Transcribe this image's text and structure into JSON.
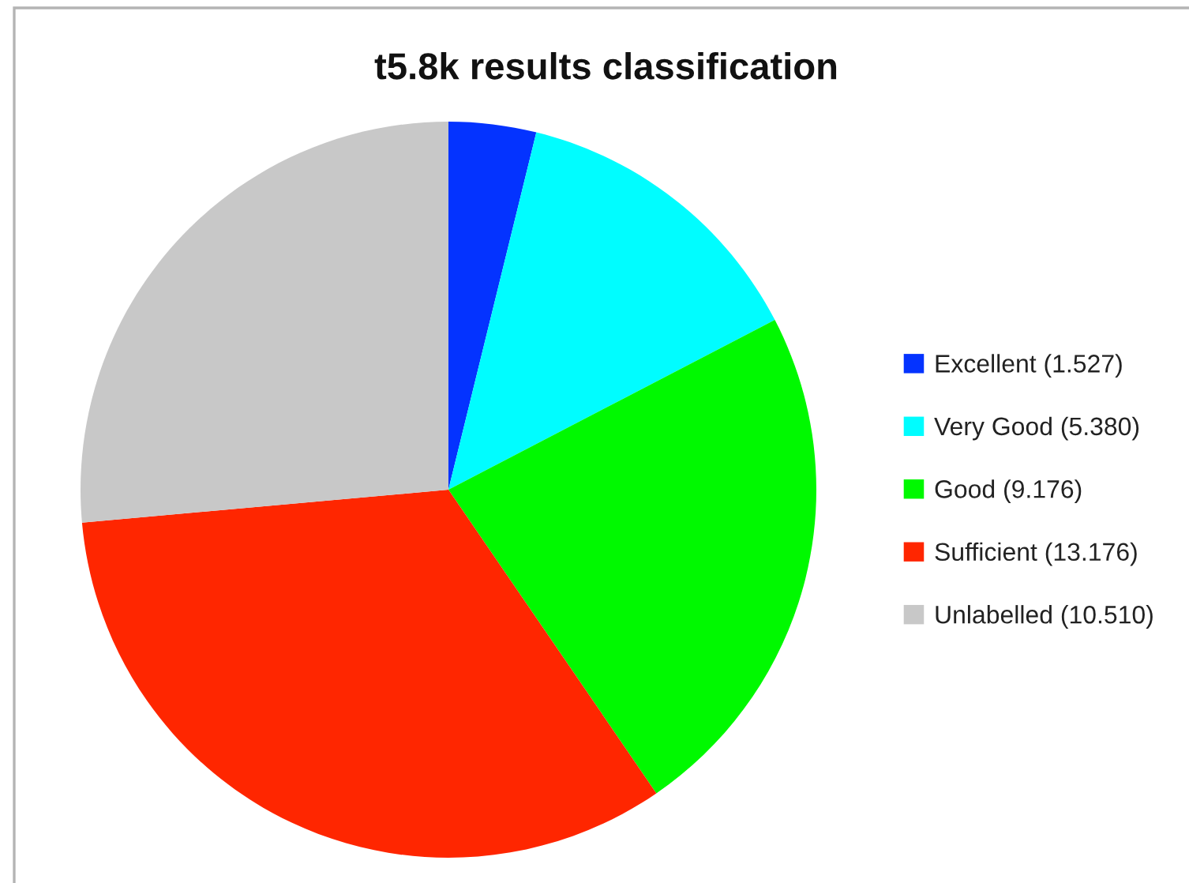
{
  "chart_data": {
    "type": "pie",
    "title": "t5.8k results classification",
    "categories": [
      "Excellent (1.527)",
      "Very Good (5.380)",
      "Good (9.176)",
      "Sufficient (13.176)",
      "Unlabelled (10.510)"
    ],
    "values": [
      1.527,
      5.38,
      9.176,
      13.176,
      10.51
    ],
    "colors": [
      "#0433ff",
      "#00fdff",
      "#00f900",
      "#ff2600",
      "#c8c8c8"
    ],
    "legend": "right"
  }
}
